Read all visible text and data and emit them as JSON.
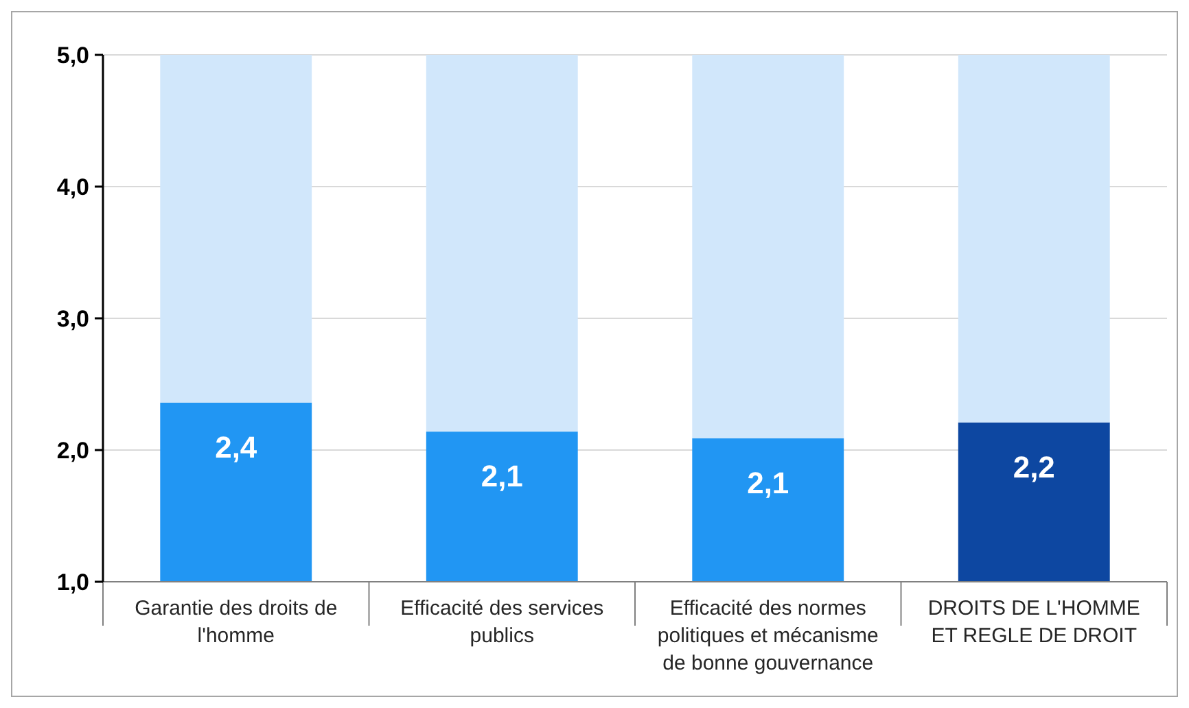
{
  "chart_data": {
    "type": "bar",
    "stacked": true,
    "categories": [
      "Garantie des droits de l'homme",
      "Efficacité des services publics",
      "Efficacité des normes politiques et mécanisme de bonne gouvernance",
      "DROITS DE L'HOMME ET REGLE DE DROIT"
    ],
    "series": [
      {
        "colors": [
          "#2196f3",
          "#2196f3",
          "#2196f3",
          "#0d47a1"
        ],
        "values": [
          2.36,
          2.14,
          2.09,
          2.21
        ],
        "value_labels": [
          "2,4",
          "2,1",
          "2,1",
          "2,2"
        ]
      },
      {
        "color": "#d1e7fb",
        "values": [
          2.64,
          2.86,
          2.91,
          2.79
        ]
      }
    ],
    "ylim": [
      1,
      5
    ],
    "yticks": [
      {
        "value": 1,
        "label": "1,0"
      },
      {
        "value": 2,
        "label": "2,0"
      },
      {
        "value": 3,
        "label": "3,0"
      },
      {
        "value": 4,
        "label": "4,0"
      },
      {
        "value": 5,
        "label": "5,0"
      }
    ],
    "grid": "y"
  }
}
